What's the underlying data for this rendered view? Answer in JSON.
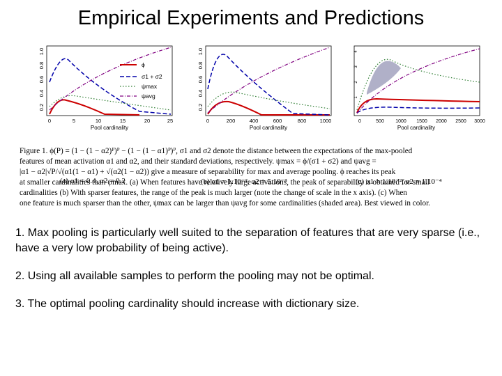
{
  "title": "Empirical Experiments and Predictions",
  "figure": {
    "panels": [
      {
        "id": "a",
        "caption": "(a) α1 = 0.4, α2 = 0.2",
        "xlabel": "Pool cardinality",
        "xticks": [
          "0",
          "5",
          "10",
          "15",
          "20",
          "25"
        ],
        "yticks": [
          "0.2",
          "0.4",
          "0.6",
          "0.8",
          "1.0"
        ],
        "legend": [
          "ϕ",
          "σ1 + σ2",
          "ψmax",
          "ψavg"
        ]
      },
      {
        "id": "b",
        "caption": "(b) α1 = 1.10⁻², α2 = 5.10⁻³",
        "xlabel": "Pool cardinality",
        "xticks": [
          "0",
          "200",
          "400",
          "600",
          "800",
          "1000"
        ],
        "yticks": [
          "0.2",
          "0.4",
          "0.6",
          "0.8",
          "1.0"
        ]
      },
      {
        "id": "c",
        "caption": "(c) α1 = 1.10⁻², α2 = 1.10⁻⁴",
        "xlabel": "Pool cardinality",
        "xticks": [
          "0",
          "500",
          "1000",
          "1500",
          "2000",
          "2500",
          "3000"
        ],
        "yticks": [
          "1",
          "2",
          "3",
          "4"
        ]
      }
    ],
    "series_colors": {
      "phi": "#cc0000",
      "sigma_sum": "#0000aa",
      "psi_max": "#2e7d32",
      "psi_avg": "#800080",
      "shaded": "#b0b0c8"
    },
    "caption_lines": [
      "Figure 1.  ϕ(P) = (1 − (1 − α2)ᴾ)ᴾ − (1 − (1 − α1)ᴾ)ᴾ,  σ1 and σ2 denote the distance between the expectations of the max-pooled",
      "features of mean activation α1 and α2, and their standard deviations, respectively.   ψmax = ϕ/(σ1 + σ2) and ψavg =",
      "|α1 − α2|√P/√(α1(1 − α1) + √(α2(1 − α2)) give a measure of separability for max and average pooling.  ϕ reaches its peak",
      "at smaller cardinalities than ψmax. (a) When features have relatively large activations, the peak of separability is obtained for small",
      "cardinalities (b) With sparser features, the range of the peak is much larger (note the change of scale in the x axis). (c) When",
      "one feature is much sparser than the other, ψmax can be larger than ψavg for some cardinalities (shaded area). Best viewed in color."
    ]
  },
  "points": [
    "1.  Max pooling is particularly well suited to the separation of features that are very sparse (i.e., have a very low probability of being active).",
    "2. Using all available samples to perform the pooling may not be optimal.",
    "3. The optimal pooling cardinality should increase with dictionary size."
  ]
}
